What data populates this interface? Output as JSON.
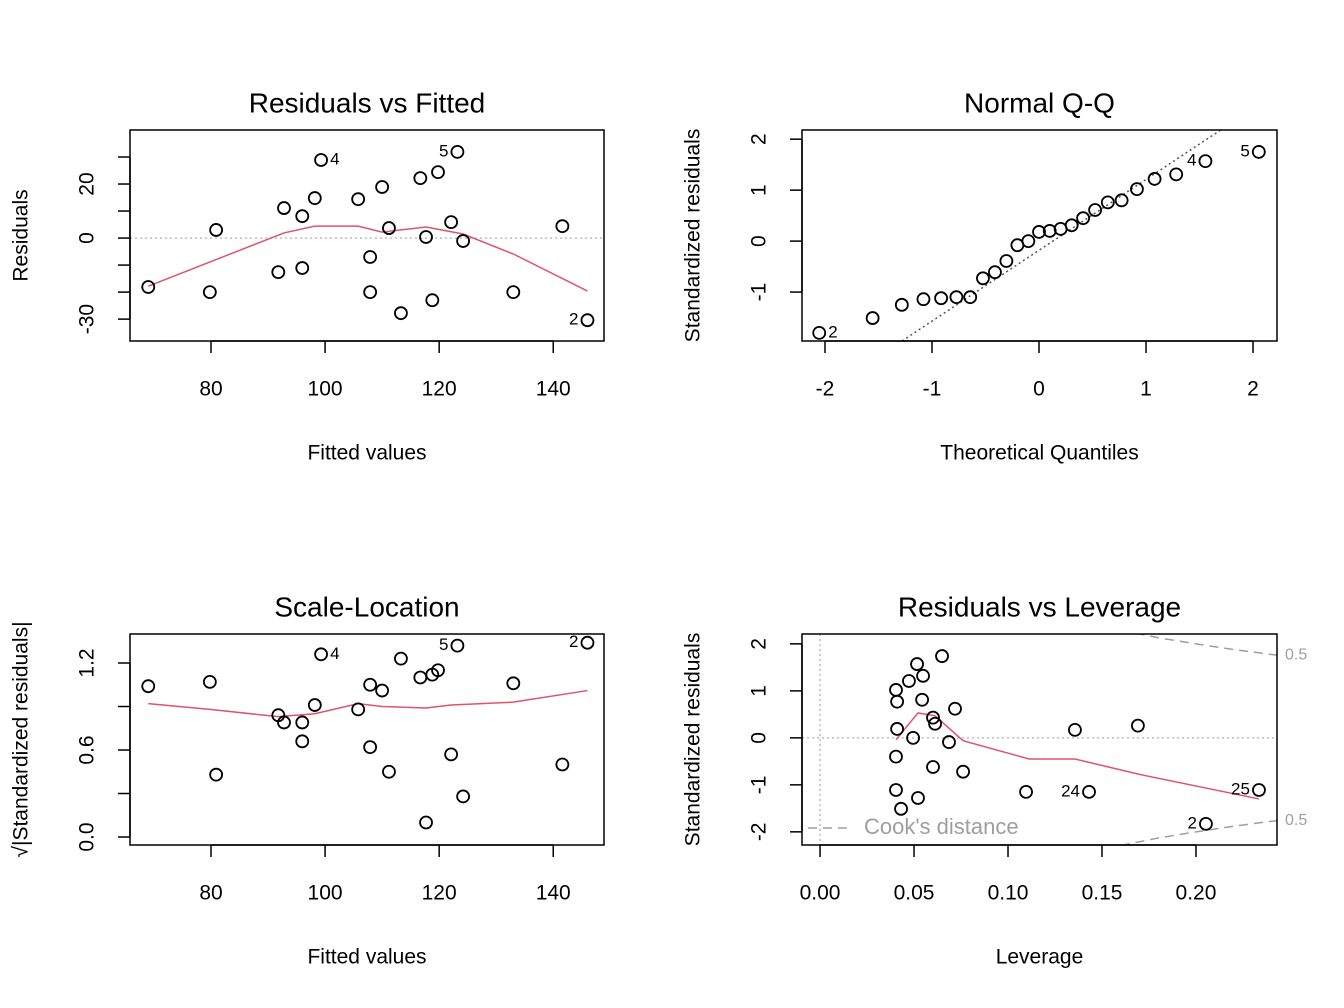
{
  "chart_data": [
    {
      "type": "scatter",
      "title": "Residuals vs Fitted",
      "xlabel": "Fitted values",
      "ylabel": "Residuals",
      "xlim": [
        65.8,
        148.9
      ],
      "ylim": [
        -38.1,
        40
      ],
      "xticks": [
        80,
        100,
        120,
        140
      ],
      "yticks": [
        -30,
        0,
        20
      ],
      "yminorticks": [
        -20,
        -10,
        10,
        30
      ],
      "point_color": "#000000",
      "x": [
        69.0,
        79.8,
        80.9,
        91.8,
        92.8,
        96.0,
        96.0,
        98.2,
        99.3,
        105.8,
        107.9,
        107.9,
        110.0,
        111.2,
        113.3,
        116.7,
        117.7,
        118.8,
        119.8,
        122.1,
        123.2,
        124.2,
        133.0,
        141.6,
        146.0
      ],
      "y": [
        -18.1,
        -20,
        3,
        -12.6,
        11.1,
        -11.1,
        8.1,
        14.8,
        28.9,
        14.4,
        -7,
        -20,
        18.9,
        3.7,
        -27.8,
        22.2,
        0.4,
        -23,
        24.4,
        5.9,
        31.9,
        -1.1,
        -20,
        4.4,
        -30.4
      ],
      "point_labels": [
        null,
        null,
        null,
        null,
        null,
        null,
        null,
        null,
        "4",
        null,
        null,
        null,
        null,
        null,
        null,
        null,
        null,
        null,
        null,
        null,
        "5",
        null,
        null,
        null,
        "2"
      ],
      "smooth_color": "#df536b",
      "smooth_x": [
        69.0,
        92.8,
        98.2,
        105.8,
        107.9,
        110.0,
        117.7,
        124.2,
        133.0,
        146.0
      ],
      "smooth_y": [
        -17.8,
        1.9,
        4.4,
        4.4,
        3.3,
        2.2,
        4.1,
        1.5,
        -5.9,
        -19.6
      ],
      "hline": 0
    },
    {
      "type": "scatter",
      "title": "Normal Q-Q",
      "xlabel": "Theoretical Quantiles",
      "ylabel": "Standardized residuals",
      "xlim": [
        -2.215,
        2.224
      ],
      "ylim": [
        -1.96,
        2.18
      ],
      "xticks": [
        -2,
        -1,
        0,
        1,
        2
      ],
      "yticks": [
        -1,
        0,
        1,
        2
      ],
      "point_color": "#000000",
      "x": [
        -2.054,
        -1.555,
        -1.282,
        -1.08,
        -0.915,
        -0.772,
        -0.643,
        -0.524,
        -0.412,
        -0.305,
        -0.202,
        -0.1,
        0,
        0.1,
        0.202,
        0.305,
        0.412,
        0.524,
        0.643,
        0.772,
        0.915,
        1.08,
        1.282,
        1.555,
        2.054
      ],
      "y": [
        -1.8,
        -1.51,
        -1.25,
        -1.14,
        -1.12,
        -1.1,
        -1.1,
        -0.73,
        -0.61,
        -0.39,
        -0.08,
        0.0,
        0.18,
        0.2,
        0.24,
        0.31,
        0.45,
        0.61,
        0.76,
        0.8,
        1.02,
        1.22,
        1.31,
        1.57,
        1.75
      ],
      "point_labels": [
        "2",
        null,
        null,
        null,
        null,
        null,
        null,
        null,
        null,
        null,
        null,
        null,
        null,
        null,
        null,
        null,
        null,
        null,
        null,
        null,
        null,
        null,
        null,
        "4",
        "5"
      ],
      "reference_line": {
        "intercept": -0.18,
        "slope": 1.39
      }
    },
    {
      "type": "scatter",
      "title": "Scale-Location",
      "xlabel": "Fitted values",
      "ylabel": "√|Standardized residuals|",
      "xlim": [
        65.8,
        148.9
      ],
      "ylim": [
        -0.055,
        1.4
      ],
      "xticks": [
        80,
        100,
        120,
        140
      ],
      "yticks": [
        {
          "value": 0,
          "label": "0.0"
        },
        {
          "value": 0.6,
          "label": "0.6"
        },
        {
          "value": 1.2,
          "label": "1.2"
        }
      ],
      "yminorticks": [
        0.3,
        0.9
      ],
      "point_color": "#000000",
      "x": [
        69.0,
        79.8,
        80.9,
        91.8,
        92.8,
        96.0,
        96.0,
        98.2,
        99.3,
        105.8,
        107.9,
        107.9,
        110.0,
        111.2,
        113.3,
        116.7,
        117.7,
        118.8,
        119.8,
        122.1,
        123.2,
        124.2,
        133.0,
        141.6,
        146.0
      ],
      "y": [
        1.04,
        1.07,
        0.43,
        0.84,
        0.79,
        0.66,
        0.79,
        0.91,
        1.26,
        0.88,
        0.62,
        1.05,
        1.01,
        0.45,
        1.23,
        1.1,
        0.1,
        1.12,
        1.15,
        0.57,
        1.32,
        0.28,
        1.06,
        0.5,
        1.34
      ],
      "point_labels": [
        null,
        null,
        null,
        null,
        null,
        null,
        null,
        null,
        "4",
        null,
        null,
        null,
        null,
        null,
        null,
        null,
        null,
        null,
        null,
        null,
        "5",
        null,
        null,
        null,
        "2"
      ],
      "smooth_color": "#df536b",
      "smooth_x": [
        69.0,
        79.8,
        91.8,
        98.2,
        105.8,
        110.0,
        117.7,
        122.1,
        133.0,
        146.0
      ],
      "smooth_y": [
        0.92,
        0.88,
        0.83,
        0.85,
        0.92,
        0.9,
        0.89,
        0.91,
        0.93,
        1.01
      ]
    },
    {
      "type": "scatter",
      "title": "Residuals vs Leverage",
      "xlabel": "Leverage",
      "ylabel": "Standardized residuals",
      "xlim": [
        -0.0096,
        0.2431
      ],
      "ylim": [
        -2.28,
        2.21
      ],
      "xticks": [
        {
          "value": 0,
          "label": "0.00"
        },
        {
          "value": 0.05,
          "label": "0.05"
        },
        {
          "value": 0.1,
          "label": "0.10"
        },
        {
          "value": 0.15,
          "label": "0.15"
        },
        {
          "value": 0.2,
          "label": "0.20"
        }
      ],
      "yticks": [
        -2,
        -1,
        0,
        1,
        2
      ],
      "point_color": "#000000",
      "x": [
        0.0404,
        0.0473,
        0.0516,
        0.0548,
        0.0649,
        0.041,
        0.0543,
        0.041,
        0.0601,
        0.0612,
        0.0718,
        0.0495,
        0.0686,
        0.0404,
        0.0601,
        0.0761,
        0.0404,
        0.0521,
        0.0431,
        0.1096,
        0.1356,
        0.1431,
        0.1691,
        0.2335,
        0.2053
      ],
      "y": [
        1.02,
        1.21,
        1.57,
        1.32,
        1.74,
        0.77,
        0.81,
        0.19,
        0.43,
        0.3,
        0.62,
        0.0,
        -0.09,
        -0.4,
        -0.62,
        -0.72,
        -1.11,
        -1.28,
        -1.51,
        -1.15,
        0.17,
        -1.15,
        0.26,
        -1.11,
        -1.83
      ],
      "point_labels": [
        null,
        null,
        null,
        null,
        null,
        null,
        null,
        null,
        null,
        null,
        null,
        null,
        null,
        null,
        null,
        null,
        null,
        null,
        null,
        null,
        null,
        "24",
        null,
        "25",
        "2"
      ],
      "smooth_color": "#df536b",
      "smooth_x": [
        0.0404,
        0.0521,
        0.0612,
        0.0761,
        0.1112,
        0.1356,
        0.1691,
        0.2335
      ],
      "smooth_y": [
        -0.04,
        0.53,
        0.47,
        -0.06,
        -0.45,
        -0.45,
        -0.77,
        -1.3
      ],
      "hline": 0,
      "vline": 0,
      "contours": [
        {
          "label": "0.5",
          "x": [
            0.16,
            0.18,
            0.2,
            0.22,
            0.2431
          ],
          "y": [
            2.29,
            2.13,
            2.0,
            1.88,
            1.76
          ]
        },
        {
          "label": "0.5",
          "x": [
            0.16,
            0.18,
            0.2,
            0.22,
            0.2431
          ],
          "y": [
            -2.29,
            -2.13,
            -2.0,
            -1.88,
            -1.76
          ]
        }
      ],
      "contour_color": "#9e9e9e",
      "legend": "Cook's distance",
      "legend_position": "bottomleft"
    }
  ]
}
